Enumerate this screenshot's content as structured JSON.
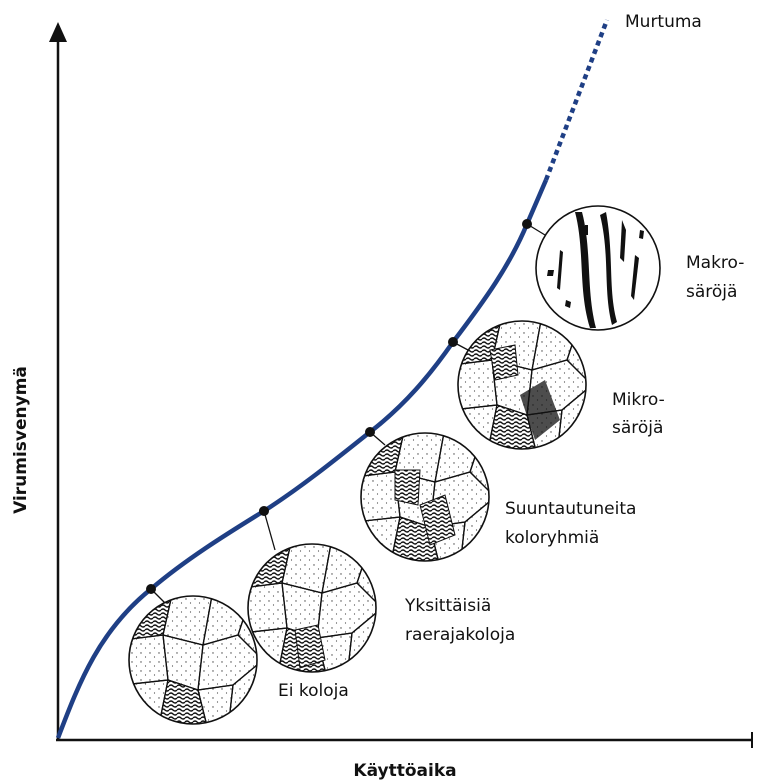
{
  "y_axis_label": "Virumisvenymä",
  "x_axis_label": "Käyttöaika",
  "end_label": "Murtuma",
  "stages": [
    {
      "lines": [
        "Ei koloja"
      ]
    },
    {
      "lines": [
        "Yksittäisiä",
        "raerajakoloja"
      ]
    },
    {
      "lines": [
        "Suuntautuneita",
        "koloryhmiä"
      ]
    },
    {
      "lines": [
        "Mikro-",
        "säröjä"
      ]
    },
    {
      "lines": [
        "Makro-",
        "säröjä"
      ]
    }
  ]
}
